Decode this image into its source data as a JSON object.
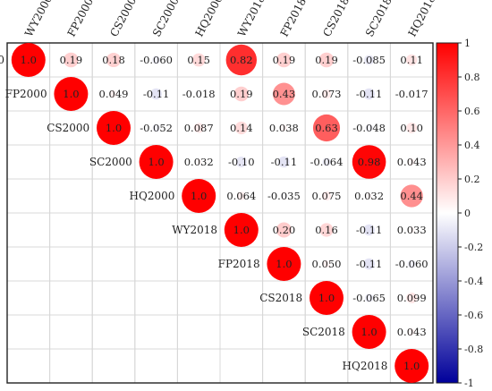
{
  "chart_data": {
    "type": "heatmap",
    "subtype": "correlogram-upper-triangle",
    "labels": [
      "WY2000",
      "FP2000",
      "CS2000",
      "SC2000",
      "HQ2000",
      "WY2018",
      "FP2018",
      "CS2018",
      "SC2018",
      "HQ2018"
    ],
    "matrix": [
      [
        1.0,
        0.19,
        0.18,
        -0.06,
        0.15,
        0.82,
        0.19,
        0.19,
        -0.085,
        0.11
      ],
      [
        null,
        1.0,
        0.049,
        -0.11,
        -0.018,
        0.19,
        0.43,
        0.073,
        -0.11,
        -0.017
      ],
      [
        null,
        null,
        1.0,
        -0.052,
        0.087,
        0.14,
        0.038,
        0.63,
        -0.048,
        0.1
      ],
      [
        null,
        null,
        null,
        1.0,
        0.032,
        -0.1,
        -0.11,
        -0.064,
        0.98,
        0.043
      ],
      [
        null,
        null,
        null,
        null,
        1.0,
        0.064,
        -0.035,
        0.075,
        0.032,
        0.44
      ],
      [
        null,
        null,
        null,
        null,
        null,
        1.0,
        0.2,
        0.16,
        -0.11,
        0.033
      ],
      [
        null,
        null,
        null,
        null,
        null,
        null,
        1.0,
        0.05,
        -0.11,
        -0.06
      ],
      [
        null,
        null,
        null,
        null,
        null,
        null,
        null,
        1.0,
        -0.065,
        0.099
      ],
      [
        null,
        null,
        null,
        null,
        null,
        null,
        null,
        null,
        1.0,
        0.043
      ],
      [
        null,
        null,
        null,
        null,
        null,
        null,
        null,
        null,
        null,
        1.0
      ]
    ],
    "labels_text": [
      [
        "1.0",
        "0.19",
        "0.18",
        "-0.060",
        "0.15",
        "0.82",
        "0.19",
        "0.19",
        "-0.085",
        "0.11"
      ],
      [
        null,
        "1.0",
        "0.049",
        "-0.11",
        "-0.018",
        "0.19",
        "0.43",
        "0.073",
        "-0.11",
        "-0.017"
      ],
      [
        null,
        null,
        "1.0",
        "-0.052",
        "0.087",
        "0.14",
        "0.038",
        "0.63",
        "-0.048",
        "0.10"
      ],
      [
        null,
        null,
        null,
        "1.0",
        "0.032",
        "-0.10",
        "-0.11",
        "-0.064",
        "0.98",
        "0.043"
      ],
      [
        null,
        null,
        null,
        null,
        "1.0",
        "0.064",
        "-0.035",
        "0.075",
        "0.032",
        "0.44"
      ],
      [
        null,
        null,
        null,
        null,
        null,
        "1.0",
        "0.20",
        "0.16",
        "-0.11",
        "0.033"
      ],
      [
        null,
        null,
        null,
        null,
        null,
        null,
        "1.0",
        "0.050",
        "-0.11",
        "-0.060"
      ],
      [
        null,
        null,
        null,
        null,
        null,
        null,
        null,
        "1.0",
        "-0.065",
        "0.099"
      ],
      [
        null,
        null,
        null,
        null,
        null,
        null,
        null,
        null,
        "1.0",
        "0.043"
      ],
      [
        null,
        null,
        null,
        null,
        null,
        null,
        null,
        null,
        null,
        "1.0"
      ]
    ],
    "color_scale": {
      "min": -1,
      "max": 1,
      "ticks": [
        "1",
        "0.8",
        "0.6",
        "0.4",
        "0.2",
        "0",
        "-0.2",
        "-0.4",
        "-0.6",
        "-0.8",
        "-1"
      ],
      "low_color": "#00009a",
      "mid_color": "#ffffff",
      "high_color": "#ff0000"
    },
    "grid": true,
    "legend": "right"
  }
}
